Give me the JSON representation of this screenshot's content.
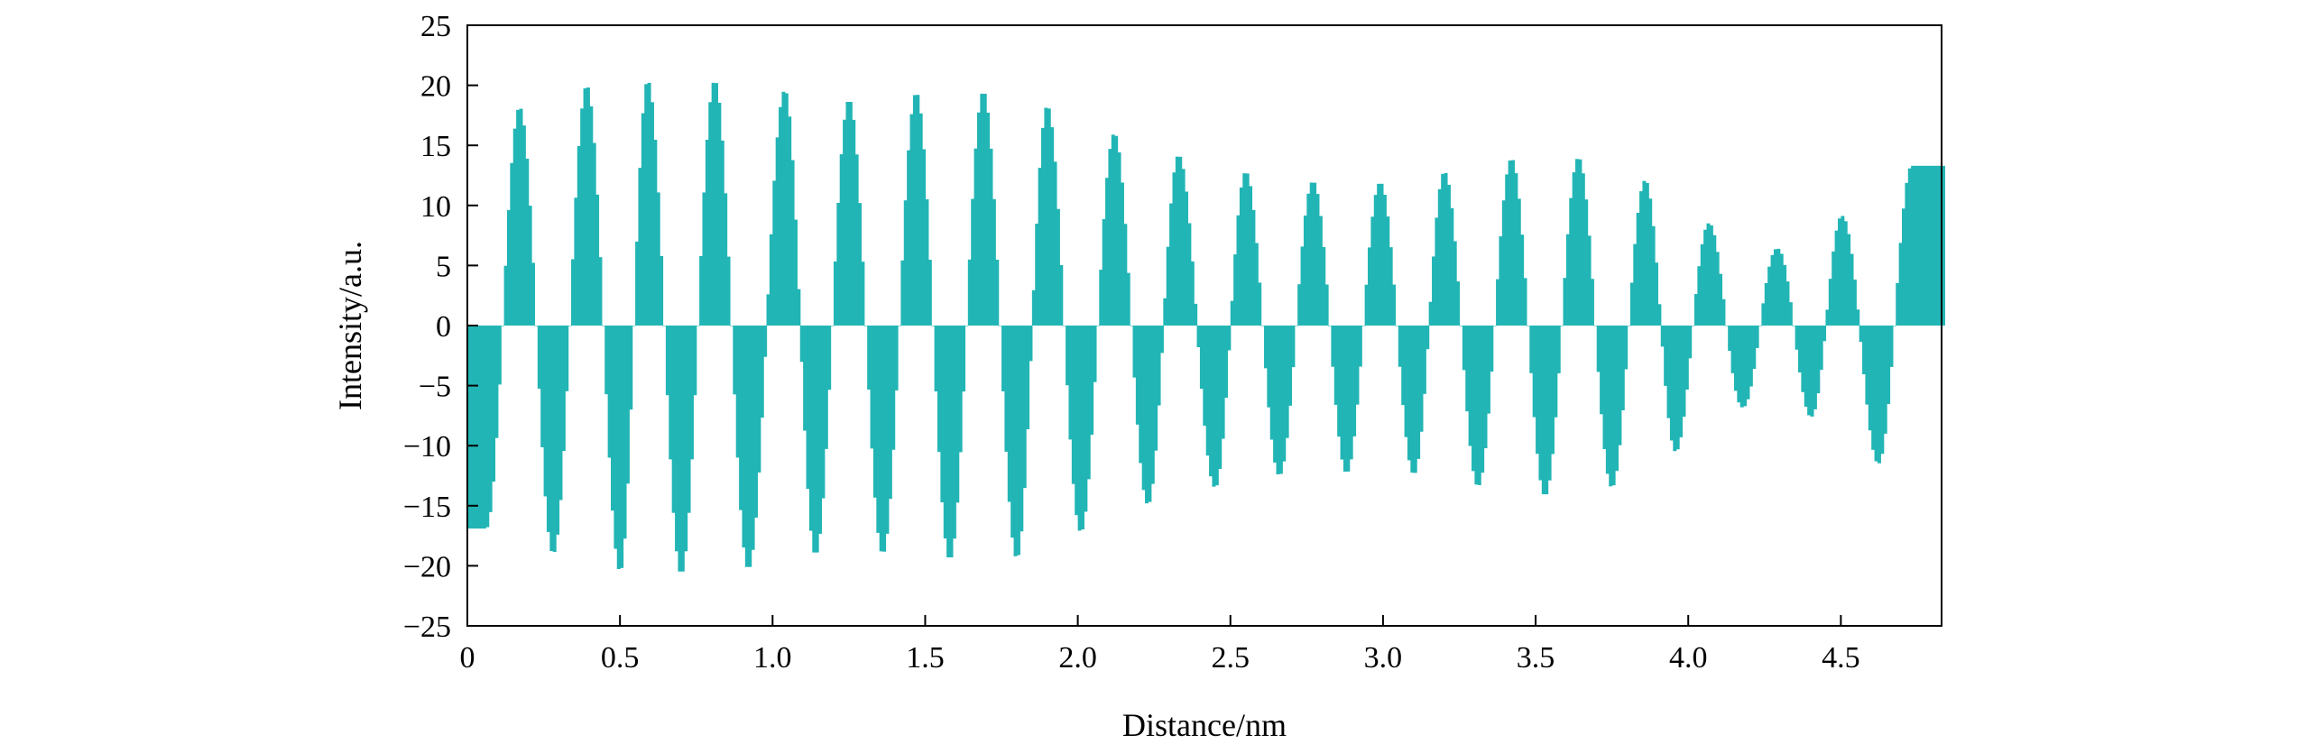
{
  "chart_data": {
    "type": "bar",
    "title": "",
    "xlabel": "Distance/nm",
    "ylabel": "Intensity/a.u.",
    "xlim": [
      0,
      4.83
    ],
    "ylim": [
      -25,
      25
    ],
    "grid": false,
    "legend": "none",
    "bar_color": "#22B5B5",
    "x_ticks": [
      0,
      0.5,
      1.0,
      1.5,
      2.0,
      2.5,
      3.0,
      3.5,
      4.0,
      4.5
    ],
    "x_tick_labels": [
      "0",
      "0.5",
      "1.0",
      "1.5",
      "2.0",
      "2.5",
      "3.0",
      "3.5",
      "4.0",
      "4.5"
    ],
    "y_ticks": [
      -25,
      -20,
      -15,
      -10,
      -5,
      0,
      5,
      10,
      15,
      20,
      25
    ],
    "y_tick_labels": [
      "−25",
      "−20",
      "−15",
      "−10",
      "−5",
      "0",
      "5",
      "10",
      "15",
      "20",
      "25"
    ],
    "peaks": {
      "x": [
        0.17,
        0.39,
        0.59,
        0.81,
        1.04,
        1.25,
        1.47,
        1.69,
        1.9,
        2.12,
        2.33,
        2.55,
        2.77,
        2.99,
        3.2,
        3.42,
        3.64,
        3.86,
        4.07,
        4.29,
        4.5,
        4.73
      ],
      "y": [
        18.2,
        20.0,
        20.4,
        20.4,
        19.6,
        18.8,
        19.4,
        19.5,
        18.3,
        16.0,
        14.2,
        12.8,
        12.0,
        11.9,
        12.8,
        13.9,
        14.0,
        12.1,
        8.5,
        6.4,
        9.1,
        13.3
      ]
    },
    "troughs": {
      "x": [
        0.06,
        0.28,
        0.5,
        0.7,
        0.92,
        1.14,
        1.36,
        1.58,
        1.8,
        2.01,
        2.23,
        2.45,
        2.66,
        2.88,
        3.1,
        3.31,
        3.53,
        3.75,
        3.96,
        4.18,
        4.4,
        4.62
      ],
      "y": [
        -16.9,
        -19.0,
        -20.5,
        -20.7,
        -20.3,
        -19.1,
        -19.0,
        -19.5,
        -19.4,
        -17.2,
        -14.9,
        -13.5,
        -12.5,
        -12.3,
        -12.4,
        -13.4,
        -14.2,
        -13.5,
        -10.5,
        -6.8,
        -7.6,
        -11.5
      ]
    }
  }
}
